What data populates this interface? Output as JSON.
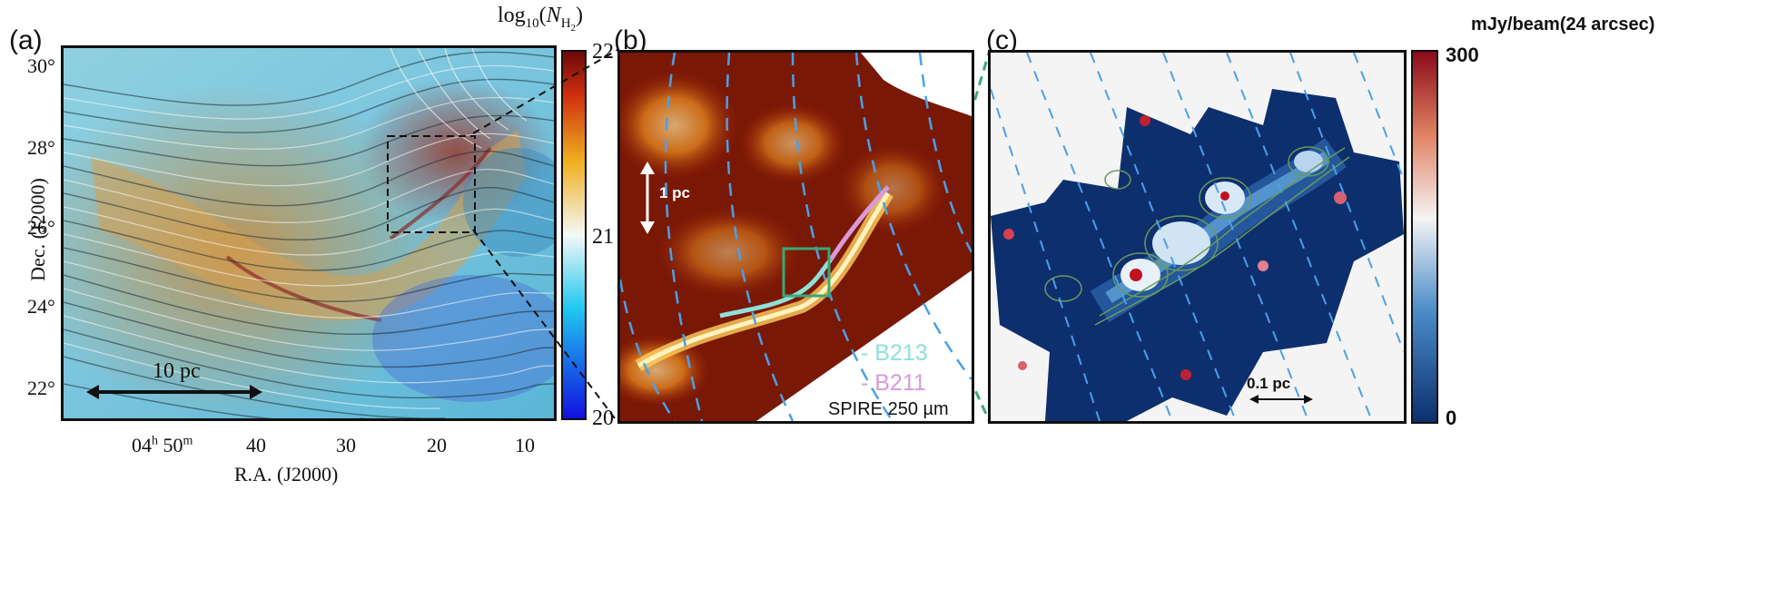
{
  "panels": {
    "a": {
      "label": "(a)",
      "colorbar_title": "log10(N_H2)",
      "colorbar_title_display": {
        "base": "log",
        "sub1": "10",
        "open": "(",
        "N": "N",
        "sub2": "H",
        "sub3": "2",
        "close": ")"
      },
      "colorbar_ticks": [
        "22",
        "21",
        "20"
      ],
      "y_ticks": [
        "30°",
        "28°",
        "26°",
        "24°",
        "22°"
      ],
      "x_ticks": [
        "04h 50m",
        "40",
        "30",
        "20",
        "10"
      ],
      "x_tick_first": {
        "main": "04",
        "h": "h",
        "mid": " 50",
        "m": "m"
      },
      "xlabel": "R.A. (J2000)",
      "ylabel": "Dec. (J2000)",
      "scalebar": "10 pc",
      "colormap": [
        "#1010e0",
        "#20c8f0",
        "#f4f8f8",
        "#f0b020",
        "#d03010",
        "#6a0808"
      ]
    },
    "b": {
      "label": "(b)",
      "scalebar": "1 pc",
      "legend": [
        {
          "text": "B213",
          "color": "#8fe0d8"
        },
        {
          "text": "B211",
          "color": "#d89ad8"
        }
      ],
      "caption": "SPIRE 250 µm",
      "box_color": "#3aa878"
    },
    "c": {
      "label": "(c)",
      "colorbar_title": "mJy/beam(24 arcsec)",
      "colorbar_ticks": [
        "300",
        "0"
      ],
      "scalebar": "0.1 pc",
      "colormap": [
        "#0d2f6e",
        "#4a8cc8",
        "#f4f4f4",
        "#e08060",
        "#8a0a1a"
      ]
    }
  }
}
